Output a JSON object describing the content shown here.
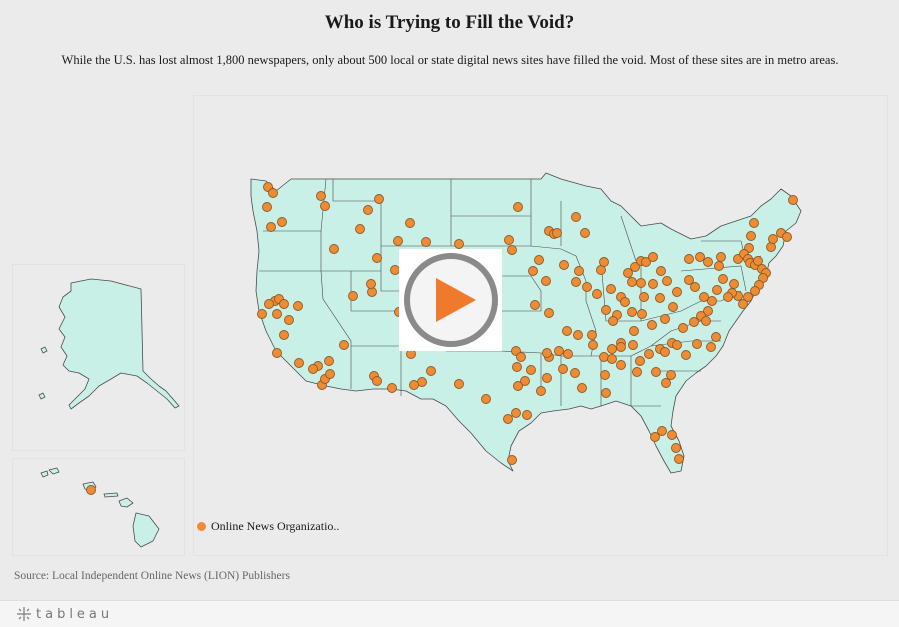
{
  "title": "Who is Trying to Fill the Void?",
  "subtitle": "While the U.S. has lost almost 1,800 newspapers, only about 500 local or state digital news sites have filled the void. Most of these sites are in metro areas.",
  "legend": {
    "label": "Online News Organizatio..",
    "color": "#ef8c33"
  },
  "source": "Source: Local Independent Online News (LION) Publishers",
  "footer": {
    "brand": "tableau",
    "brand_icon": "tableau-plus-icon"
  },
  "overlay": {
    "icon": "play-icon",
    "accent": "#f07a2c"
  },
  "map": {
    "land_color": "#c8f0e6",
    "dot_color": "#ef8c33",
    "panels": [
      "contiguous-us",
      "alaska",
      "hawaii"
    ]
  }
}
